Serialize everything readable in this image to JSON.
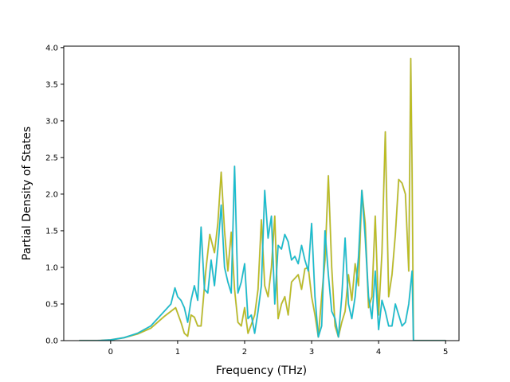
{
  "chart_data": {
    "type": "line",
    "title": "",
    "xlabel": "Frequency (THz)",
    "ylabel": "Partial Density of States",
    "xlim": [
      -0.7,
      5.2
    ],
    "ylim": [
      0.0,
      4.02
    ],
    "xticks": [
      0,
      1,
      2,
      3,
      4,
      5
    ],
    "xtick_labels": [
      "0",
      "1",
      "2",
      "3",
      "4",
      "5"
    ],
    "yticks": [
      0.0,
      0.5,
      1.0,
      1.5,
      2.0,
      2.5,
      3.0,
      3.5,
      4.0
    ],
    "ytick_labels": [
      "0.0",
      "0.5",
      "1.0",
      "1.5",
      "2.0",
      "2.5",
      "3.0",
      "3.5",
      "4.0"
    ],
    "grid": false,
    "legend": "none",
    "series": [
      {
        "color": "#bcbd22",
        "x": [
          -0.47,
          -0.2,
          0.0,
          0.2,
          0.4,
          0.6,
          0.8,
          0.9,
          0.97,
          1.05,
          1.1,
          1.15,
          1.2,
          1.25,
          1.3,
          1.35,
          1.42,
          1.48,
          1.55,
          1.6,
          1.65,
          1.7,
          1.75,
          1.8,
          1.85,
          1.9,
          1.95,
          2.0,
          2.05,
          2.1,
          2.15,
          2.2,
          2.25,
          2.3,
          2.35,
          2.4,
          2.45,
          2.5,
          2.55,
          2.6,
          2.65,
          2.7,
          2.75,
          2.8,
          2.85,
          2.9,
          2.95,
          3.0,
          3.05,
          3.1,
          3.15,
          3.2,
          3.25,
          3.3,
          3.35,
          3.4,
          3.45,
          3.5,
          3.55,
          3.6,
          3.65,
          3.7,
          3.75,
          3.8,
          3.85,
          3.9,
          3.95,
          4.0,
          4.05,
          4.1,
          4.15,
          4.2,
          4.25,
          4.3,
          4.35,
          4.4,
          4.45,
          4.48,
          4.5,
          4.52,
          4.6,
          4.8,
          5.0
        ],
        "y": [
          0.0,
          0.0,
          0.01,
          0.04,
          0.09,
          0.17,
          0.33,
          0.4,
          0.45,
          0.25,
          0.1,
          0.06,
          0.35,
          0.32,
          0.2,
          0.2,
          0.95,
          1.45,
          1.2,
          1.6,
          2.3,
          1.5,
          0.95,
          1.48,
          0.7,
          0.25,
          0.2,
          0.45,
          0.1,
          0.22,
          0.35,
          0.7,
          1.65,
          0.75,
          0.6,
          1.0,
          1.7,
          0.3,
          0.5,
          0.6,
          0.35,
          0.8,
          0.85,
          0.9,
          0.7,
          0.98,
          1.0,
          0.6,
          0.35,
          0.05,
          0.6,
          1.1,
          2.25,
          1.0,
          0.2,
          0.05,
          0.25,
          0.4,
          0.9,
          0.55,
          1.05,
          0.75,
          2.05,
          1.6,
          0.45,
          0.6,
          1.7,
          0.35,
          1.2,
          2.85,
          0.6,
          0.9,
          1.45,
          2.2,
          2.15,
          2.0,
          0.95,
          3.85,
          2.3,
          0.0,
          0.0,
          0.0,
          0.0
        ]
      },
      {
        "color": "#17becf",
        "x": [
          -0.47,
          -0.2,
          0.0,
          0.2,
          0.4,
          0.6,
          0.8,
          0.9,
          0.96,
          1.0,
          1.05,
          1.1,
          1.15,
          1.2,
          1.25,
          1.3,
          1.35,
          1.4,
          1.45,
          1.5,
          1.55,
          1.6,
          1.65,
          1.7,
          1.75,
          1.8,
          1.85,
          1.9,
          1.95,
          2.0,
          2.05,
          2.1,
          2.15,
          2.2,
          2.25,
          2.3,
          2.35,
          2.4,
          2.45,
          2.5,
          2.55,
          2.6,
          2.65,
          2.7,
          2.75,
          2.8,
          2.85,
          2.9,
          2.95,
          3.0,
          3.05,
          3.1,
          3.15,
          3.2,
          3.25,
          3.3,
          3.35,
          3.4,
          3.45,
          3.5,
          3.55,
          3.6,
          3.65,
          3.7,
          3.75,
          3.8,
          3.85,
          3.9,
          3.95,
          4.0,
          4.05,
          4.1,
          4.15,
          4.2,
          4.25,
          4.3,
          4.35,
          4.4,
          4.45,
          4.5,
          4.52,
          4.6,
          4.8,
          5.0
        ],
        "y": [
          0.0,
          0.0,
          0.01,
          0.04,
          0.1,
          0.2,
          0.4,
          0.5,
          0.72,
          0.6,
          0.55,
          0.45,
          0.25,
          0.55,
          0.75,
          0.55,
          1.55,
          0.7,
          0.65,
          1.1,
          0.75,
          1.25,
          1.85,
          1.0,
          0.8,
          0.65,
          2.38,
          0.65,
          0.8,
          1.05,
          0.3,
          0.35,
          0.1,
          0.4,
          0.75,
          2.05,
          1.4,
          1.7,
          0.5,
          1.3,
          1.25,
          1.45,
          1.35,
          1.1,
          1.15,
          1.05,
          1.3,
          1.1,
          0.95,
          1.6,
          0.6,
          0.05,
          0.2,
          1.5,
          0.9,
          0.4,
          0.3,
          0.05,
          0.6,
          1.4,
          0.5,
          0.3,
          0.6,
          1.15,
          2.05,
          1.4,
          0.6,
          0.3,
          0.95,
          0.15,
          0.55,
          0.4,
          0.2,
          0.2,
          0.5,
          0.35,
          0.2,
          0.25,
          0.5,
          0.95,
          0.0,
          0.0,
          0.0,
          0.0
        ]
      }
    ]
  }
}
